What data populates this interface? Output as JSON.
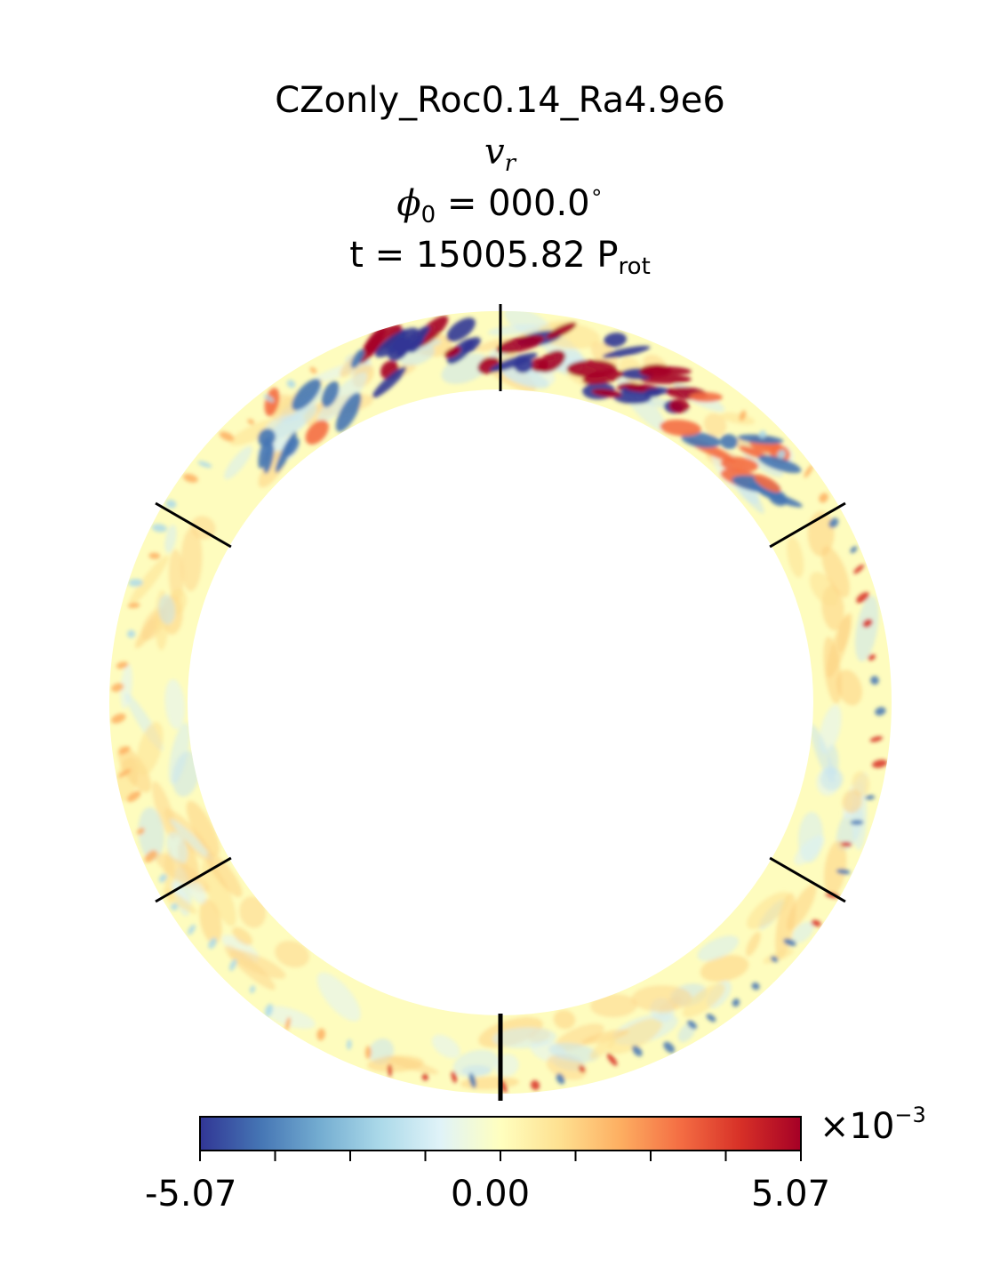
{
  "title": {
    "line1": "CZonly_Roc0.14_Ra4.9e6",
    "line2_symbol": "v",
    "line2_sub": "r",
    "line3_symbol": "ϕ",
    "line3_sub": "0",
    "line3_rest": " = 000.0",
    "line3_degree": "∘",
    "line4_main": "t = 15005.82 P",
    "line4_sub": "rot"
  },
  "chart_data": {
    "type": "heatmap",
    "field": "v_r",
    "geometry": "meridional annulus",
    "radial_divider_angles_deg": [
      0,
      60,
      120,
      180,
      240,
      300
    ],
    "colormap": "RdYlBu_r",
    "colormap_stops": [
      "#313695",
      "#4575b4",
      "#74add1",
      "#abd9e9",
      "#e0f3f8",
      "#ffffbf",
      "#fee090",
      "#fdae61",
      "#f46d43",
      "#d73027",
      "#a50026"
    ],
    "colorbar": {
      "min": -5.07,
      "max": 5.07,
      "tick_labels": [
        "-5.07",
        "0.00",
        "5.07"
      ],
      "minor_ticks": 9,
      "multiplier": "×10",
      "multiplier_exp": "−3"
    }
  }
}
